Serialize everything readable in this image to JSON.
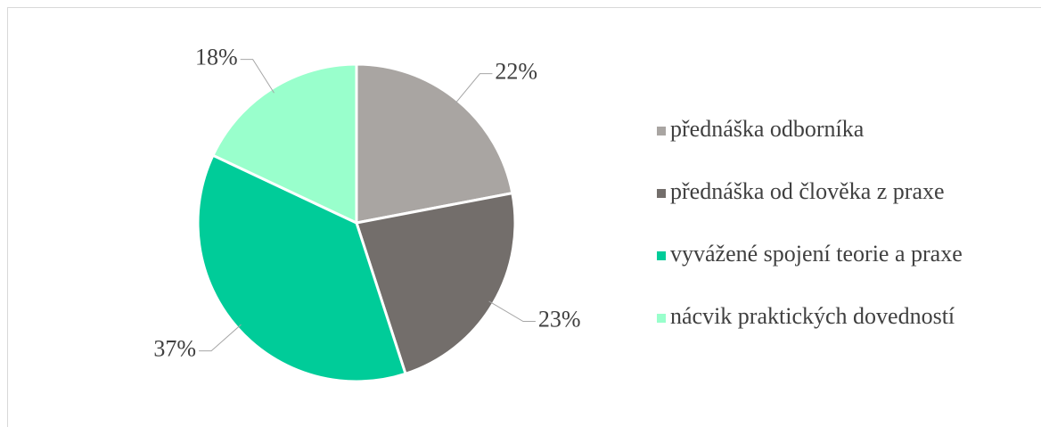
{
  "chart_data": {
    "type": "pie",
    "categories": [
      "přednáška odborníka",
      "přednáška od člověka z praxe",
      "vyvážené spojení teorie a praxe",
      "nácvik praktických dovedností"
    ],
    "values": [
      22,
      23,
      37,
      18
    ],
    "value_labels": [
      "22%",
      "23%",
      "37%",
      "18%"
    ],
    "colors": [
      "#a9a5a2",
      "#736e6b",
      "#00cc99",
      "#99ffcc"
    ],
    "legend": "right"
  }
}
